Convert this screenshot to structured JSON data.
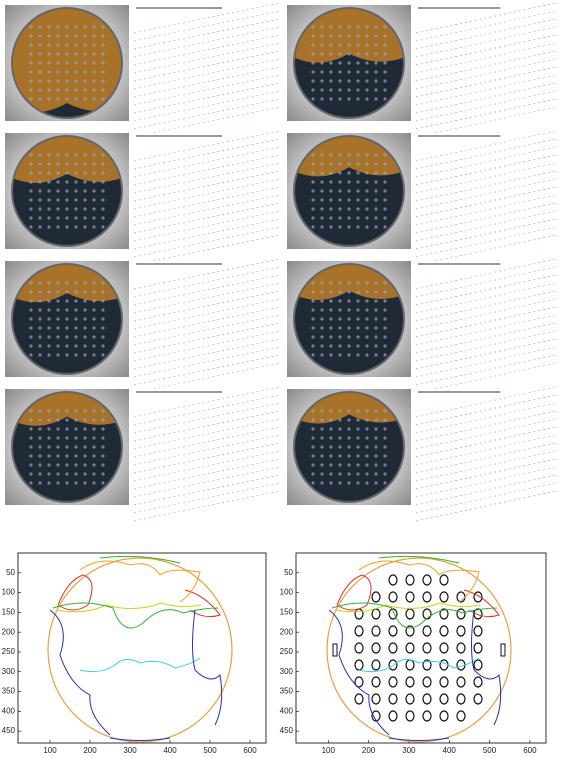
{
  "panels": [
    {
      "xlim": [
        20,
        640
      ],
      "ylim": [
        0,
        480
      ],
      "xticks": [
        100,
        200,
        300,
        400,
        500,
        600
      ],
      "yticks": [
        50,
        100,
        150,
        200,
        250,
        300,
        350,
        400,
        450
      ]
    },
    {
      "xlim": [
        20,
        640
      ],
      "ylim": [
        0,
        480
      ],
      "xticks": [
        100,
        200,
        300,
        400,
        500,
        600
      ],
      "yticks": [
        50,
        100,
        150,
        200,
        250,
        300,
        350,
        400,
        450
      ]
    }
  ]
}
